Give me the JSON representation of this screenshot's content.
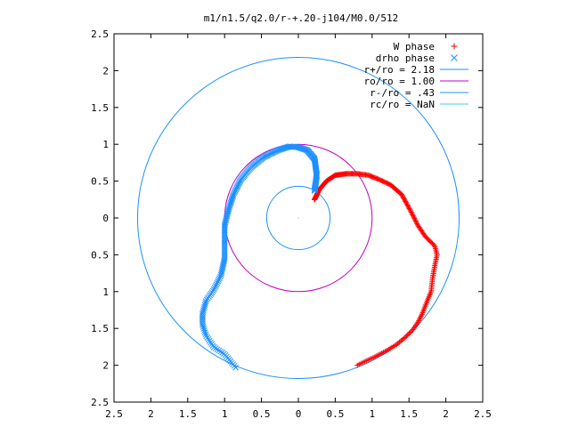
{
  "chart_data": {
    "type": "scatter",
    "title": "m1/n1.5/q2.0/r-+.20-j104/M0.0/512",
    "xlim": [
      -2.5,
      2.5
    ],
    "ylim": [
      -2.5,
      2.5
    ],
    "xticks": [
      -2.5,
      -2,
      -1.5,
      -1,
      -0.5,
      0,
      0.5,
      1,
      1.5,
      2,
      2.5
    ],
    "yticks": [
      -2.5,
      -2,
      -1.5,
      -1,
      -0.5,
      0,
      0.5,
      1,
      1.5,
      2,
      2.5
    ],
    "xtick_labels": [
      "2.5",
      "2",
      "1.5",
      "1",
      "0.5",
      "0",
      "0.5",
      "1",
      "1.5",
      "2",
      "2.5"
    ],
    "ytick_labels": [
      "2.5",
      "2",
      "1.5",
      "1",
      "0.5",
      "0",
      "0.5",
      "1",
      "1.5",
      "2",
      "2.5"
    ],
    "grid": false,
    "legend_position": "top-right",
    "colors": {
      "w_phase": "#ff0000",
      "drho_phase": "#1e90ff",
      "r_plus": "#1e90ff",
      "ro": "#c000c0",
      "r_minus": "#1e90ff",
      "rc": "#40d0e0"
    },
    "series": [
      {
        "name": "W phase",
        "marker": "+",
        "color": "#ff0000",
        "path": [
          [
            0.22,
            0.25
          ],
          [
            0.28,
            0.38
          ],
          [
            0.38,
            0.5
          ],
          [
            0.5,
            0.58
          ],
          [
            0.65,
            0.6
          ],
          [
            0.8,
            0.6
          ],
          [
            0.95,
            0.58
          ],
          [
            1.1,
            0.52
          ],
          [
            1.25,
            0.45
          ],
          [
            1.4,
            0.32
          ],
          [
            1.52,
            0.1
          ],
          [
            1.62,
            -0.1
          ],
          [
            1.72,
            -0.25
          ],
          [
            1.85,
            -0.38
          ],
          [
            1.88,
            -0.5
          ],
          [
            1.85,
            -0.65
          ],
          [
            1.82,
            -0.82
          ],
          [
            1.8,
            -1.0
          ],
          [
            1.75,
            -1.12
          ],
          [
            1.68,
            -1.3
          ],
          [
            1.62,
            -1.42
          ],
          [
            1.55,
            -1.52
          ],
          [
            1.45,
            -1.62
          ],
          [
            1.33,
            -1.72
          ],
          [
            1.2,
            -1.8
          ],
          [
            1.05,
            -1.88
          ],
          [
            0.92,
            -1.94
          ],
          [
            0.8,
            -2.0
          ]
        ]
      },
      {
        "name": "drho phase",
        "marker": "x",
        "color": "#1e90ff",
        "path": [
          [
            0.22,
            0.37
          ],
          [
            0.25,
            0.58
          ],
          [
            0.22,
            0.8
          ],
          [
            0.12,
            0.92
          ],
          [
            0.0,
            0.96
          ],
          [
            -0.12,
            0.97
          ],
          [
            -0.28,
            0.92
          ],
          [
            -0.48,
            0.82
          ],
          [
            -0.65,
            0.68
          ],
          [
            -0.78,
            0.52
          ],
          [
            -0.88,
            0.32
          ],
          [
            -0.95,
            0.1
          ],
          [
            -1.0,
            -0.1
          ],
          [
            -1.0,
            -0.3
          ],
          [
            -1.0,
            -0.55
          ],
          [
            -1.05,
            -0.78
          ],
          [
            -1.15,
            -0.98
          ],
          [
            -1.25,
            -1.12
          ],
          [
            -1.3,
            -1.3
          ],
          [
            -1.3,
            -1.45
          ],
          [
            -1.25,
            -1.6
          ],
          [
            -1.15,
            -1.75
          ],
          [
            -1.0,
            -1.85
          ],
          [
            -0.9,
            -1.97
          ],
          [
            -0.85,
            -2.03
          ]
        ]
      }
    ],
    "circles": [
      {
        "name": "r+/ro = 2.18",
        "radius": 2.18,
        "color": "#1e90ff"
      },
      {
        "name": "ro/ro = 1.00",
        "radius": 1.0,
        "color": "#c000c0"
      },
      {
        "name": "r-/ro = .43",
        "radius": 0.43,
        "color": "#1e90ff"
      },
      {
        "name": "rc/ro = NaN",
        "radius": null,
        "color": "#40d0e0"
      }
    ]
  }
}
